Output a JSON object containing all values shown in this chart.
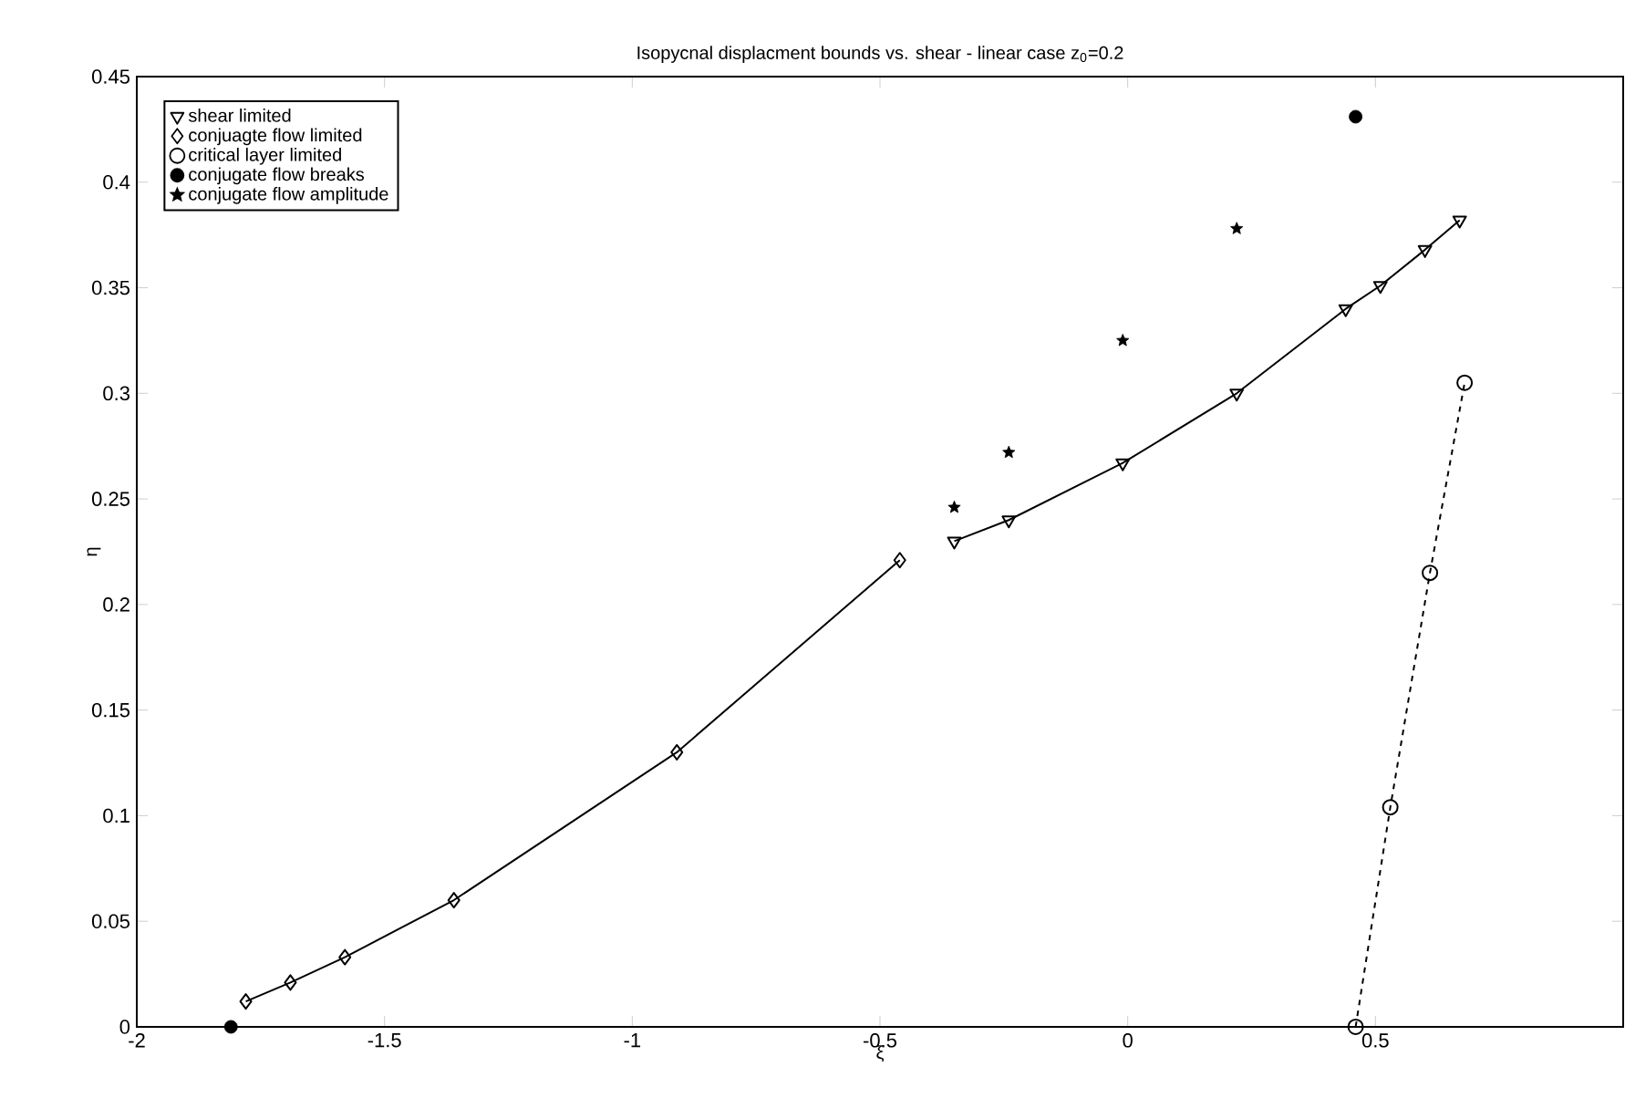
{
  "chart_data": {
    "type": "line",
    "title": "Isopycnal displacment bounds vs. shear - linear case z$_{0}$=0.2",
    "xlabel": "ξ",
    "ylabel": "η",
    "xlim": [
      -2,
      1
    ],
    "ylim": [
      0,
      0.45
    ],
    "xticks": [
      -2,
      -1.5,
      -1,
      -0.5,
      0,
      0.5
    ],
    "yticks": [
      0,
      0.05,
      0.1,
      0.15,
      0.2,
      0.25,
      0.3,
      0.35,
      0.4,
      0.45
    ],
    "legend": "top left",
    "grid": false,
    "series": [
      {
        "name": "shear limited",
        "color": "#000000",
        "marker": "triangle",
        "line_style": "solid",
        "x": [
          -0.35,
          -0.24,
          -0.01,
          0.22,
          0.44,
          0.51,
          0.6,
          0.67
        ],
        "values": [
          0.23,
          0.24,
          0.267,
          0.3,
          0.34,
          0.351,
          0.368,
          0.382
        ]
      },
      {
        "name": "conjuagte flow limited",
        "color": "#000000",
        "marker": "diamond",
        "line_style": "solid",
        "x": [
          -1.78,
          -1.69,
          -1.58,
          -1.36,
          -0.91,
          -0.46
        ],
        "values": [
          0.012,
          0.021,
          0.033,
          0.06,
          0.13,
          0.221
        ]
      },
      {
        "name": "critical layer limited",
        "color": "#000000",
        "marker": "circle",
        "line_style": "dashed",
        "x": [
          0.46,
          0.53,
          0.61,
          0.68
        ],
        "values": [
          0,
          0.104,
          0.215,
          0.305
        ]
      },
      {
        "name": "conjugate flow breaks",
        "type": "scatter",
        "color": "#000000",
        "marker": "circle",
        "x": [
          -1.81,
          0.46
        ],
        "values": [
          0,
          0.431
        ]
      },
      {
        "name": "conjugate flow amplitude",
        "type": "scatter",
        "color": "#000000",
        "marker": "star",
        "x": [
          -0.35,
          -0.24,
          -0.01,
          0.22
        ],
        "values": [
          0.246,
          0.272,
          0.325,
          0.378
        ]
      }
    ]
  }
}
